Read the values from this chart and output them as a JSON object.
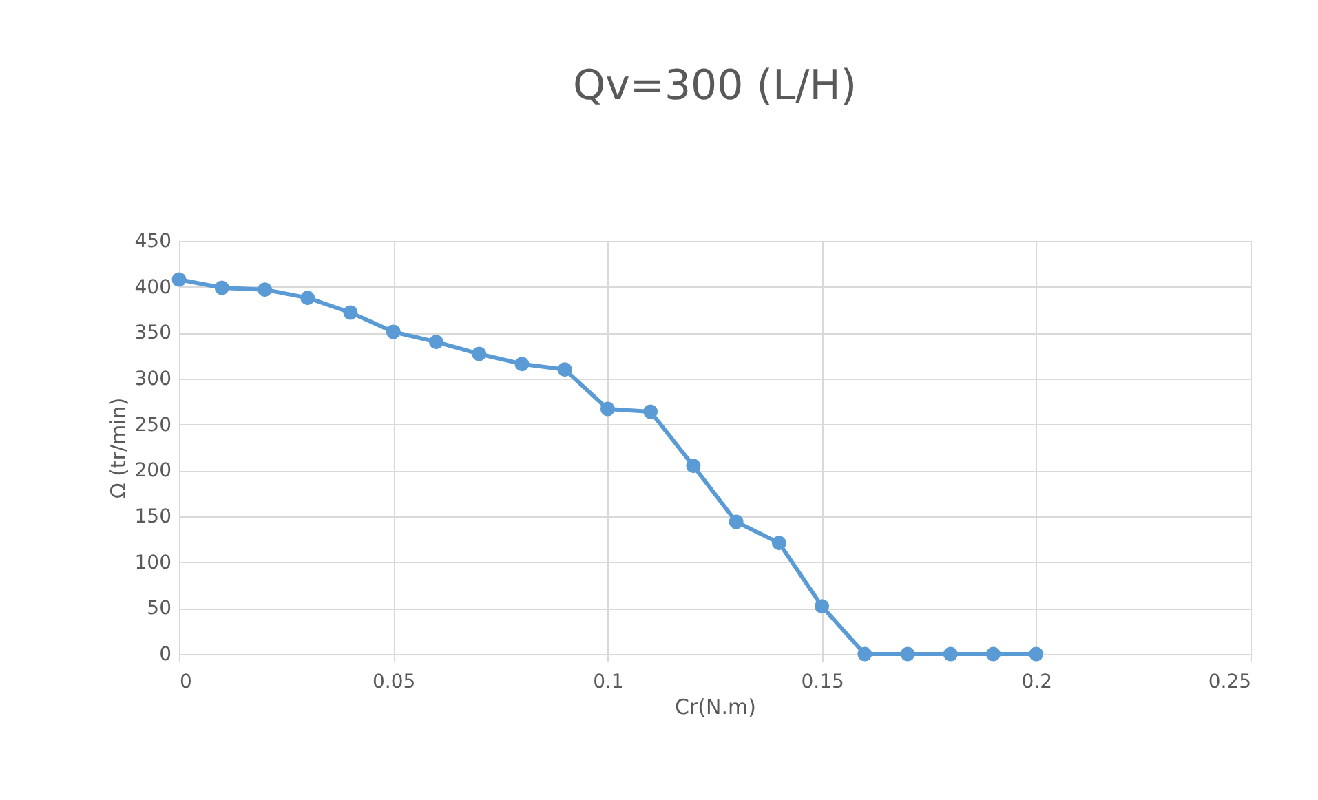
{
  "chart_data": {
    "type": "line",
    "title": "Qv=300 (L/H)",
    "xlabel": "Cr(N.m)",
    "ylabel": "Ω (tr/min)",
    "x": [
      0,
      0.01,
      0.02,
      0.03,
      0.04,
      0.05,
      0.06,
      0.07,
      0.08,
      0.09,
      0.1,
      0.11,
      0.12,
      0.13,
      0.14,
      0.15,
      0.16,
      0.17,
      0.18,
      0.19,
      0.2
    ],
    "series": [
      {
        "color": "#5b9bd5",
        "values": [
          408,
          399,
          397,
          388,
          372,
          351,
          340,
          327,
          316,
          310,
          267,
          264,
          205,
          144,
          121,
          52,
          0,
          0,
          0,
          0,
          0
        ]
      }
    ],
    "xlim": [
      0,
      0.25
    ],
    "xticks": [
      0,
      0.05,
      0.1,
      0.15,
      0.2,
      0.25
    ],
    "ylim": [
      0,
      450
    ],
    "yticks": [
      0,
      50,
      100,
      150,
      200,
      250,
      300,
      350,
      400,
      450
    ],
    "grid": true,
    "marker": "circle",
    "line_style": "solid",
    "legend": false
  }
}
